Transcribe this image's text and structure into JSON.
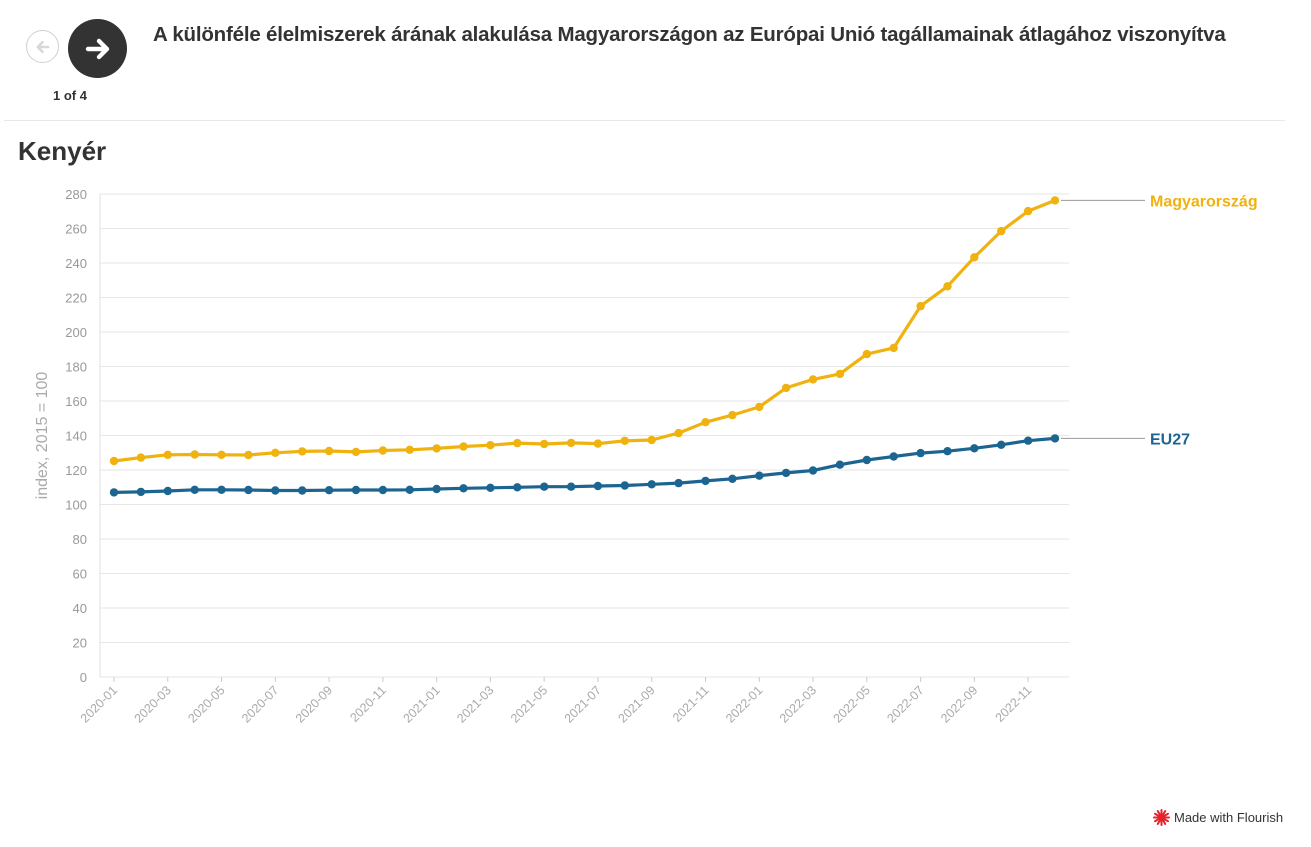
{
  "navigation": {
    "prev_icon": "arrow-left-icon",
    "next_icon": "arrow-right-icon",
    "counter": "1 of 4"
  },
  "title": "A különféle élelmiszerek árának alakulása Magyarországon az Európai Unió tagállamainak átlagához viszonyítva",
  "credit": {
    "label": "Made with Flourish",
    "icon": "flourish-logo-icon",
    "color": "#e8202a"
  },
  "chart_data": {
    "type": "line",
    "title": "Kenyér",
    "xlabel": "",
    "ylabel": "index, 2015 = 100",
    "ylim": [
      0,
      280
    ],
    "yticks": [
      0,
      20,
      40,
      60,
      80,
      100,
      120,
      140,
      160,
      180,
      200,
      220,
      240,
      260,
      280
    ],
    "grid": true,
    "legend": "line-end labels on the right",
    "x": [
      "2020-01",
      "2020-02",
      "2020-03",
      "2020-04",
      "2020-05",
      "2020-06",
      "2020-07",
      "2020-08",
      "2020-09",
      "2020-10",
      "2020-11",
      "2020-12",
      "2021-01",
      "2021-02",
      "2021-03",
      "2021-04",
      "2021-05",
      "2021-06",
      "2021-07",
      "2021-08",
      "2021-09",
      "2021-10",
      "2021-11",
      "2021-12",
      "2022-01",
      "2022-02",
      "2022-03",
      "2022-04",
      "2022-05",
      "2022-06",
      "2022-07",
      "2022-08",
      "2022-09",
      "2022-10",
      "2022-11",
      "2022-12"
    ],
    "xtick_labels": [
      "2020-01",
      "2020-03",
      "2020-05",
      "2020-07",
      "2020-09",
      "2020-11",
      "2021-01",
      "2021-03",
      "2021-05",
      "2021-07",
      "2021-09",
      "2021-11",
      "2022-01",
      "2022-03",
      "2022-05",
      "2022-07",
      "2022-09",
      "2022-11"
    ],
    "series": [
      {
        "name": "Magyarország",
        "color": "#f0b20e",
        "values": [
          125.2,
          127.2,
          128.8,
          129.0,
          128.8,
          128.7,
          130.0,
          130.8,
          131.0,
          130.5,
          131.3,
          131.7,
          132.5,
          133.6,
          134.4,
          135.6,
          135.1,
          135.7,
          135.3,
          136.9,
          137.4,
          141.4,
          147.7,
          151.8,
          156.6,
          167.6,
          172.5,
          175.7,
          187.2,
          190.8,
          215.0,
          226.5,
          243.3,
          258.5,
          270.1,
          276.3
        ]
      },
      {
        "name": "EU27",
        "color": "#1d6591",
        "values": [
          107.0,
          107.3,
          107.8,
          108.5,
          108.5,
          108.4,
          108.1,
          108.1,
          108.3,
          108.4,
          108.4,
          108.5,
          109.0,
          109.4,
          109.7,
          110.0,
          110.3,
          110.3,
          110.7,
          111.0,
          111.7,
          112.4,
          113.7,
          114.9,
          116.7,
          118.3,
          119.7,
          123.1,
          125.8,
          127.8,
          129.8,
          130.9,
          132.6,
          134.6,
          137.0,
          138.3
        ]
      }
    ]
  }
}
